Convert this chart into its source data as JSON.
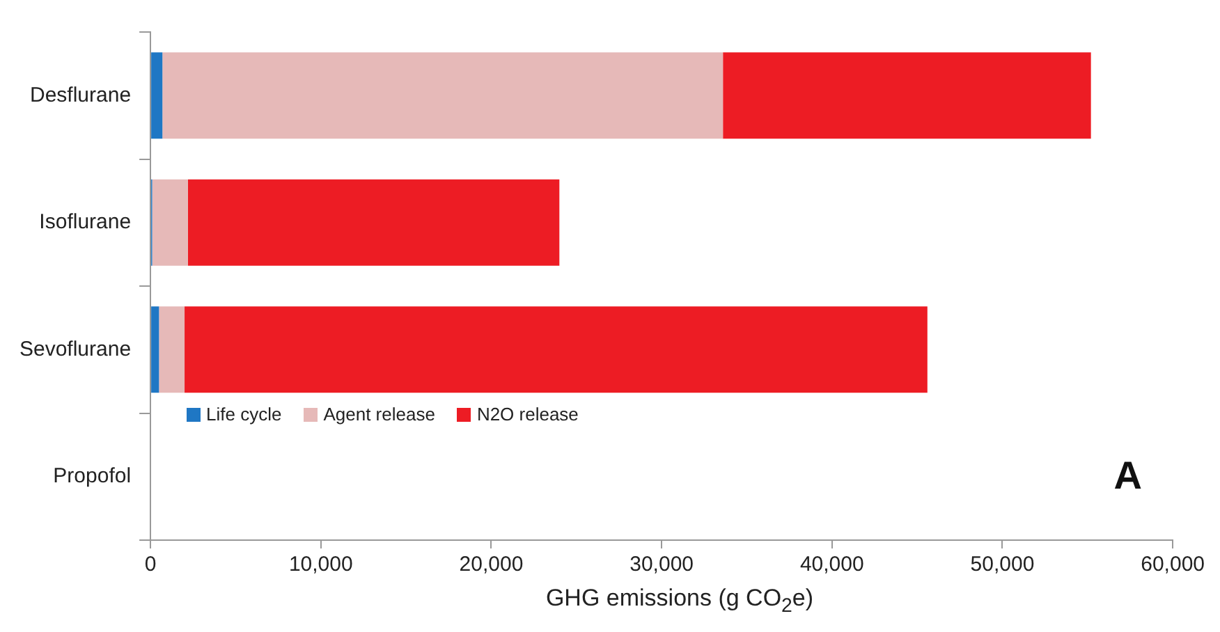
{
  "chart_data": {
    "type": "bar",
    "orientation": "horizontal",
    "stacked": true,
    "xlabel": "GHG emissions (g CO$_{2}$e)",
    "annotations": [
      "A"
    ],
    "categories": [
      "Desflurane",
      "Isoflurane",
      "Sevoflurane",
      "Propofol"
    ],
    "series": [
      {
        "name": "Life cycle",
        "color": "#1f77c4",
        "values": [
          700,
          100,
          500,
          null
        ]
      },
      {
        "name": "Agent release",
        "color": "#e6b9b8",
        "values": [
          32900,
          2100,
          1500,
          0
        ]
      },
      {
        "name": "N2O release",
        "color": "#ed1c24",
        "values": [
          21600,
          21800,
          43600,
          0
        ]
      }
    ],
    "xlim": [
      0,
      60000
    ],
    "xticks": [
      {
        "value": 0,
        "label": "0"
      },
      {
        "value": 10000,
        "label": "10,000"
      },
      {
        "value": 20000,
        "label": "20,000"
      },
      {
        "value": 30000,
        "label": "30,000"
      },
      {
        "value": 40000,
        "label": "40,000"
      },
      {
        "value": 50000,
        "label": "50,000"
      },
      {
        "value": 60000,
        "label": "60,000"
      }
    ],
    "grid": false,
    "legend": "left"
  }
}
